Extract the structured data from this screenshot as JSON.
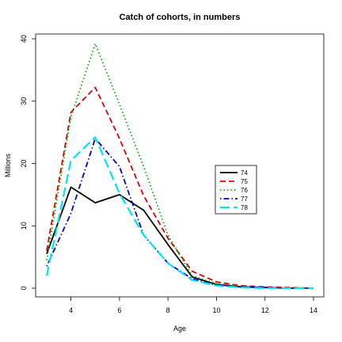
{
  "chart_data": {
    "type": "line",
    "title": "Catch of cohorts, in numbers",
    "xlabel": "Age",
    "ylabel": "Millions",
    "xlim": [
      3,
      14
    ],
    "ylim": [
      0,
      40
    ],
    "xticks": [
      4,
      6,
      8,
      10,
      12,
      14
    ],
    "yticks": [
      0,
      10,
      20,
      30,
      40
    ],
    "grid": false,
    "legend_position": "right-center",
    "x": [
      3,
      4,
      5,
      6,
      7,
      8,
      9,
      10,
      11,
      12,
      13,
      14
    ],
    "series": [
      {
        "name": "74",
        "color": "#000000",
        "dash": "solid",
        "values": [
          5.5,
          16.2,
          13.7,
          15.0,
          12.5,
          7.0,
          1.8,
          0.6,
          0.2,
          0.1,
          0.0,
          0.0
        ]
      },
      {
        "name": "75",
        "color": "#dd0000",
        "dash": "dashed",
        "values": [
          6.0,
          28.2,
          32.2,
          24.0,
          14.8,
          8.0,
          2.7,
          1.0,
          0.4,
          0.2,
          0.1,
          0.0
        ]
      },
      {
        "name": "76",
        "color": "#00aa00",
        "dash": "dotted",
        "values": [
          4.5,
          27.5,
          39.2,
          29.5,
          19.5,
          8.5,
          2.0,
          0.7,
          0.3,
          0.1,
          0.0,
          0.0
        ]
      },
      {
        "name": "77",
        "color": "#0000cc",
        "dash": "dotdash",
        "values": [
          3.5,
          12.0,
          24.0,
          19.5,
          8.5,
          4.0,
          1.5,
          0.5,
          0.2,
          0.1,
          0.0,
          0.0
        ]
      },
      {
        "name": "78",
        "color": "#00e5ee",
        "dash": "longdash",
        "values": [
          2.0,
          20.5,
          24.2,
          15.2,
          8.5,
          4.0,
          1.3,
          0.4,
          0.1,
          0.0,
          0.0,
          0.0
        ]
      }
    ]
  }
}
